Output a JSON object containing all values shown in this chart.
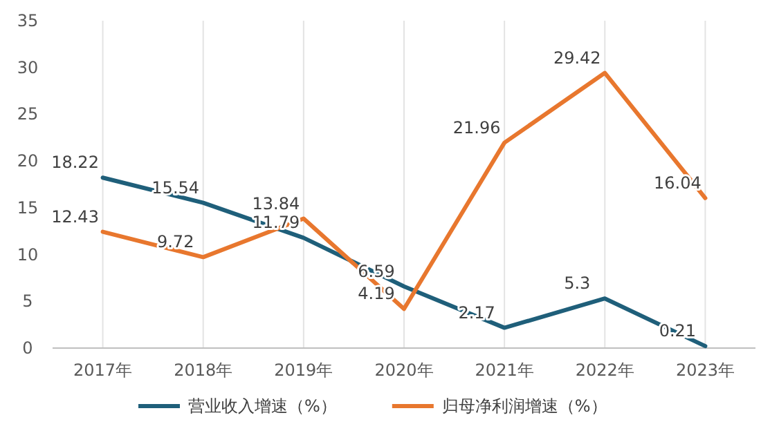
{
  "chart_data": {
    "type": "line",
    "categories": [
      "2017年",
      "2018年",
      "2019年",
      "2020年",
      "2021年",
      "2022年",
      "2023年"
    ],
    "series": [
      {
        "name": "营业收入增速（%）",
        "color": "#1f5f7a",
        "values": [
          18.22,
          15.54,
          11.79,
          6.59,
          2.17,
          5.3,
          0.21
        ]
      },
      {
        "name": "归母净利润增速（%）",
        "color": "#e8772e",
        "values": [
          12.43,
          9.72,
          13.84,
          4.19,
          21.96,
          29.42,
          16.04
        ]
      }
    ],
    "ylim": [
      0,
      35
    ],
    "yticks": [
      0,
      5,
      10,
      15,
      20,
      25,
      30,
      35
    ],
    "grid": "x",
    "legend": "bottom",
    "data_labels": true,
    "marker": "none",
    "line_style": "solid"
  }
}
